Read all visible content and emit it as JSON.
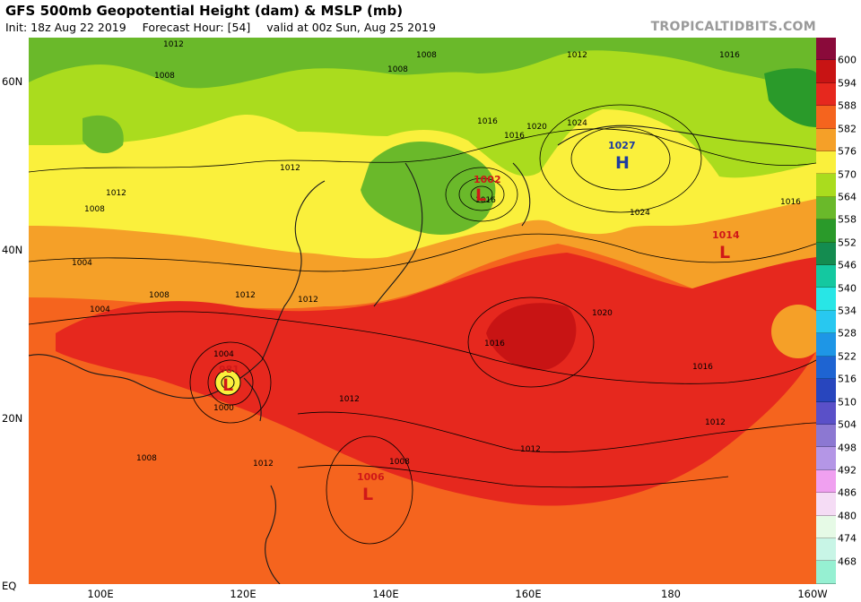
{
  "header": {
    "title": "GFS 500mb Geopotential Height (dam) & MSLP (mb)",
    "init": "Init: 18z Aug 22 2019",
    "forecast_hour": "Forecast Hour: [54]",
    "valid": "valid at 00z Sun, Aug 25 2019",
    "credit": "TROPICALTIDBITS.COM"
  },
  "axes": {
    "lat_labels": [
      "60N",
      "40N",
      "20N",
      "EQ"
    ],
    "lon_labels": [
      "100E",
      "120E",
      "140E",
      "160E",
      "180",
      "160W"
    ]
  },
  "colorbar": {
    "labels": [
      "600",
      "594",
      "588",
      "582",
      "576",
      "570",
      "564",
      "558",
      "552",
      "546",
      "540",
      "534",
      "528",
      "522",
      "516",
      "510",
      "504",
      "498",
      "492",
      "486",
      "480",
      "474",
      "468"
    ],
    "colors": [
      "#8a0a3a",
      "#c81414",
      "#e6281e",
      "#f5641e",
      "#f5a028",
      "#faf03c",
      "#aadc1e",
      "#6ab92a",
      "#2a9a2a",
      "#148c50",
      "#14c8a0",
      "#28e6e6",
      "#28c8f0",
      "#1e96e6",
      "#1e64d2",
      "#2846be",
      "#5a50c8",
      "#8c78d2",
      "#b496e6",
      "#f0a0f0",
      "#f5dcf5",
      "#e6fae6",
      "#c8f5e6",
      "#96f0d2"
    ]
  },
  "pressure_centers": [
    {
      "type": "H",
      "value": "1027"
    },
    {
      "type": "L",
      "value": "1002"
    },
    {
      "type": "L",
      "value": "1014"
    },
    {
      "type": "L",
      "value": "981"
    },
    {
      "type": "L",
      "value": "1006"
    }
  ],
  "isobar_labels": [
    "1012",
    "1008",
    "1008",
    "1016",
    "1016",
    "1012",
    "1008",
    "1012",
    "1008",
    "1004",
    "1008",
    "1012",
    "1004",
    "1012",
    "1012",
    "1016",
    "1016",
    "1020",
    "1024",
    "1024",
    "1020",
    "1016",
    "1016",
    "1012",
    "1012",
    "1012",
    "1004",
    "1000",
    "1008",
    "1008",
    "1012",
    "1016"
  ]
}
